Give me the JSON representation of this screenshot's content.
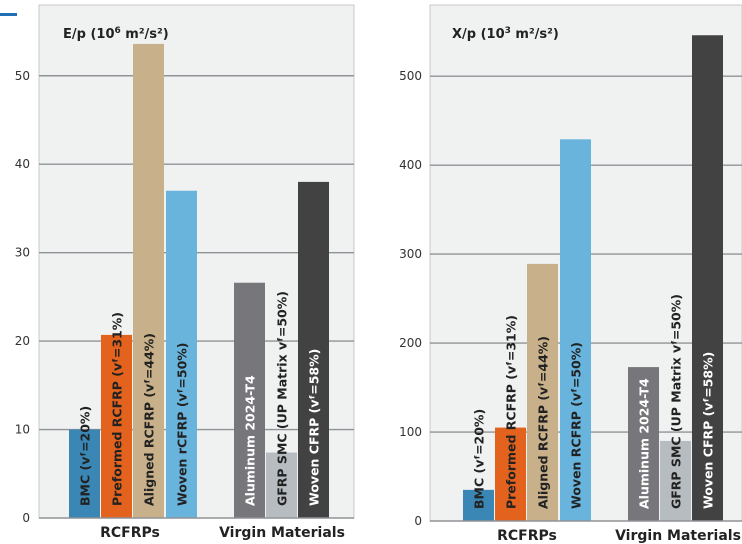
{
  "accent_color": "#1f6fb5",
  "chart_data": [
    {
      "type": "bar",
      "title_main": "E/p (10",
      "title_sup": "6",
      "title_rest": " m²/s²)",
      "ylim": [
        0,
        58
      ],
      "yticks": [
        0,
        10,
        20,
        30,
        40,
        50
      ],
      "grid": true,
      "groups": [
        "RCFRPs",
        "Virgin Materials"
      ],
      "bars": [
        {
          "group": 0,
          "label": "BMC (vᶠ=20%)",
          "value": 10.0,
          "color": "#3a87b6",
          "text_color": "#222222"
        },
        {
          "group": 0,
          "label": "Preformed RCFRP (vᶠ=31%)",
          "value": 20.7,
          "color": "#e2621e",
          "text_color": "#222222"
        },
        {
          "group": 0,
          "label": "Aligned RCFRP (vᶠ=44%)",
          "value": 53.6,
          "color": "#c8b18a",
          "text_color": "#222222"
        },
        {
          "group": 0,
          "label": "Woven rCFRP (vᶠ=50%)",
          "value": 37.0,
          "color": "#69b4dd",
          "text_color": "#222222"
        },
        {
          "group": 1,
          "label": "Aluminum 2024-T4",
          "value": 26.6,
          "color": "#77767a",
          "text_color": "#ffffff"
        },
        {
          "group": 1,
          "label": "GFRP SMC (UP Matrix vᶠ=50%)",
          "value": 7.4,
          "color": "#b7bcc0",
          "text_color": "#222222"
        },
        {
          "group": 1,
          "label": "Woven CFRP (vᶠ=58%)",
          "value": 38.0,
          "color": "#424242",
          "text_color": "#ffffff"
        }
      ]
    },
    {
      "type": "bar",
      "title_main": "X/p (10",
      "title_sup": "3",
      "title_rest": " m²/s²)",
      "ylim": [
        0,
        580
      ],
      "yticks": [
        0,
        100,
        200,
        300,
        400,
        500
      ],
      "grid": true,
      "groups": [
        "RCFRPs",
        "Virgin Materials"
      ],
      "bars": [
        {
          "group": 0,
          "label": "BMC (vᶠ=20%)",
          "value": 35,
          "color": "#3a87b6",
          "text_color": "#222222"
        },
        {
          "group": 0,
          "label": "Preformed RCFRP (vᶠ=31%)",
          "value": 105,
          "color": "#e2621e",
          "text_color": "#222222"
        },
        {
          "group": 0,
          "label": "Aligned RCFRP (vᶠ=44%)",
          "value": 289,
          "color": "#c8b18a",
          "text_color": "#222222"
        },
        {
          "group": 0,
          "label": "Woven RCFRP (vᶠ=50%)",
          "value": 429,
          "color": "#69b4dd",
          "text_color": "#222222"
        },
        {
          "group": 1,
          "label": "Aluminum 2024-T4",
          "value": 173,
          "color": "#77767a",
          "text_color": "#ffffff"
        },
        {
          "group": 1,
          "label": "GFRP SMC (UP Matrix vᶠ=50%)",
          "value": 90,
          "color": "#b7bcc0",
          "text_color": "#222222"
        },
        {
          "group": 1,
          "label": "Woven CFRP (vᶠ=58%)",
          "value": 546,
          "color": "#424242",
          "text_color": "#ffffff"
        }
      ]
    }
  ]
}
